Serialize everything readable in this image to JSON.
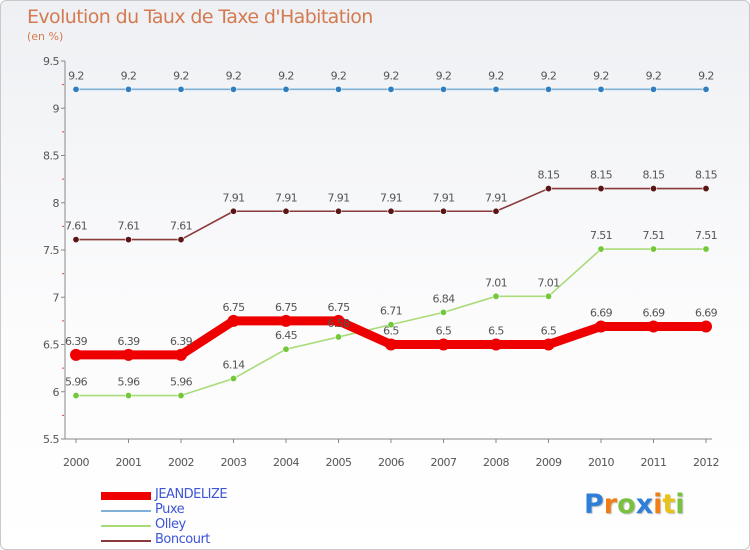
{
  "chart_data": {
    "type": "line",
    "title": "Evolution du Taux de Taxe d'Habitation",
    "subtitle": "(en %)",
    "xlabel": "",
    "ylabel": "",
    "categories": [
      "2000",
      "2001",
      "2002",
      "2003",
      "2004",
      "2005",
      "2006",
      "2007",
      "2008",
      "2009",
      "2010",
      "2011",
      "2012"
    ],
    "ylim": [
      5.5,
      9.5
    ],
    "yticks": [
      "5.5",
      "6",
      "6.5",
      "7",
      "7.5",
      "8",
      "8.5",
      "9",
      "9.5"
    ],
    "grid": false,
    "legend_position": "bottom-left",
    "series": [
      {
        "name": "Puxe",
        "color": "#7fb0d8",
        "dot_color": "#2f7fc0",
        "values": [
          9.2,
          9.2,
          9.2,
          9.2,
          9.2,
          9.2,
          9.2,
          9.2,
          9.2,
          9.2,
          9.2,
          9.2,
          9.2
        ],
        "labels": [
          "9.2",
          "9.2",
          "9.2",
          "9.2",
          "9.2",
          "9.2",
          "9.2",
          "9.2",
          "9.2",
          "9.2",
          "9.2",
          "9.2",
          "9.2"
        ]
      },
      {
        "name": "Boncourt",
        "color": "#8a3a3a",
        "dot_color": "#5a1515",
        "values": [
          7.61,
          7.61,
          7.61,
          7.91,
          7.91,
          7.91,
          7.91,
          7.91,
          7.91,
          8.15,
          8.15,
          8.15,
          8.15
        ],
        "labels": [
          "7.61",
          "7.61",
          "7.61",
          "7.91",
          "7.91",
          "7.91",
          "7.91",
          "7.91",
          "7.91",
          "8.15",
          "8.15",
          "8.15",
          "8.15"
        ]
      },
      {
        "name": "Olley",
        "color": "#a8dc78",
        "dot_color": "#72c83a",
        "values": [
          5.96,
          5.96,
          5.96,
          6.14,
          6.45,
          6.58,
          6.71,
          6.84,
          7.01,
          7.01,
          7.51,
          7.51,
          7.51
        ],
        "labels": [
          "5.96",
          "5.96",
          "5.96",
          "6.14",
          "6.45",
          "6.58",
          "6.71",
          "6.84",
          "7.01",
          "7.01",
          "7.51",
          "7.51",
          "7.51"
        ]
      },
      {
        "name": "JEANDELIZE",
        "color": "#ee0000",
        "dot_color": "#ee0000",
        "values": [
          6.39,
          6.39,
          6.39,
          6.75,
          6.75,
          6.75,
          6.5,
          6.5,
          6.5,
          6.5,
          6.69,
          6.69,
          6.69
        ],
        "labels": [
          "6.39",
          "6.39",
          "6.39",
          "6.75",
          "6.75",
          "6.75",
          "6.5",
          "6.5",
          "6.5",
          "6.5",
          "6.69",
          "6.69",
          "6.69"
        ]
      }
    ],
    "legend": [
      "JEANDELIZE",
      "Puxe",
      "Olley",
      "Boncourt"
    ]
  },
  "logo": {
    "letters": [
      "P",
      "r",
      "o",
      "x",
      "i",
      "t",
      "i"
    ],
    "colors": [
      "#2f7fd8",
      "#f07e14",
      "#7ac142",
      "#2f7fd8",
      "#f07e14",
      "#e8c21a",
      "#7ac142"
    ]
  }
}
